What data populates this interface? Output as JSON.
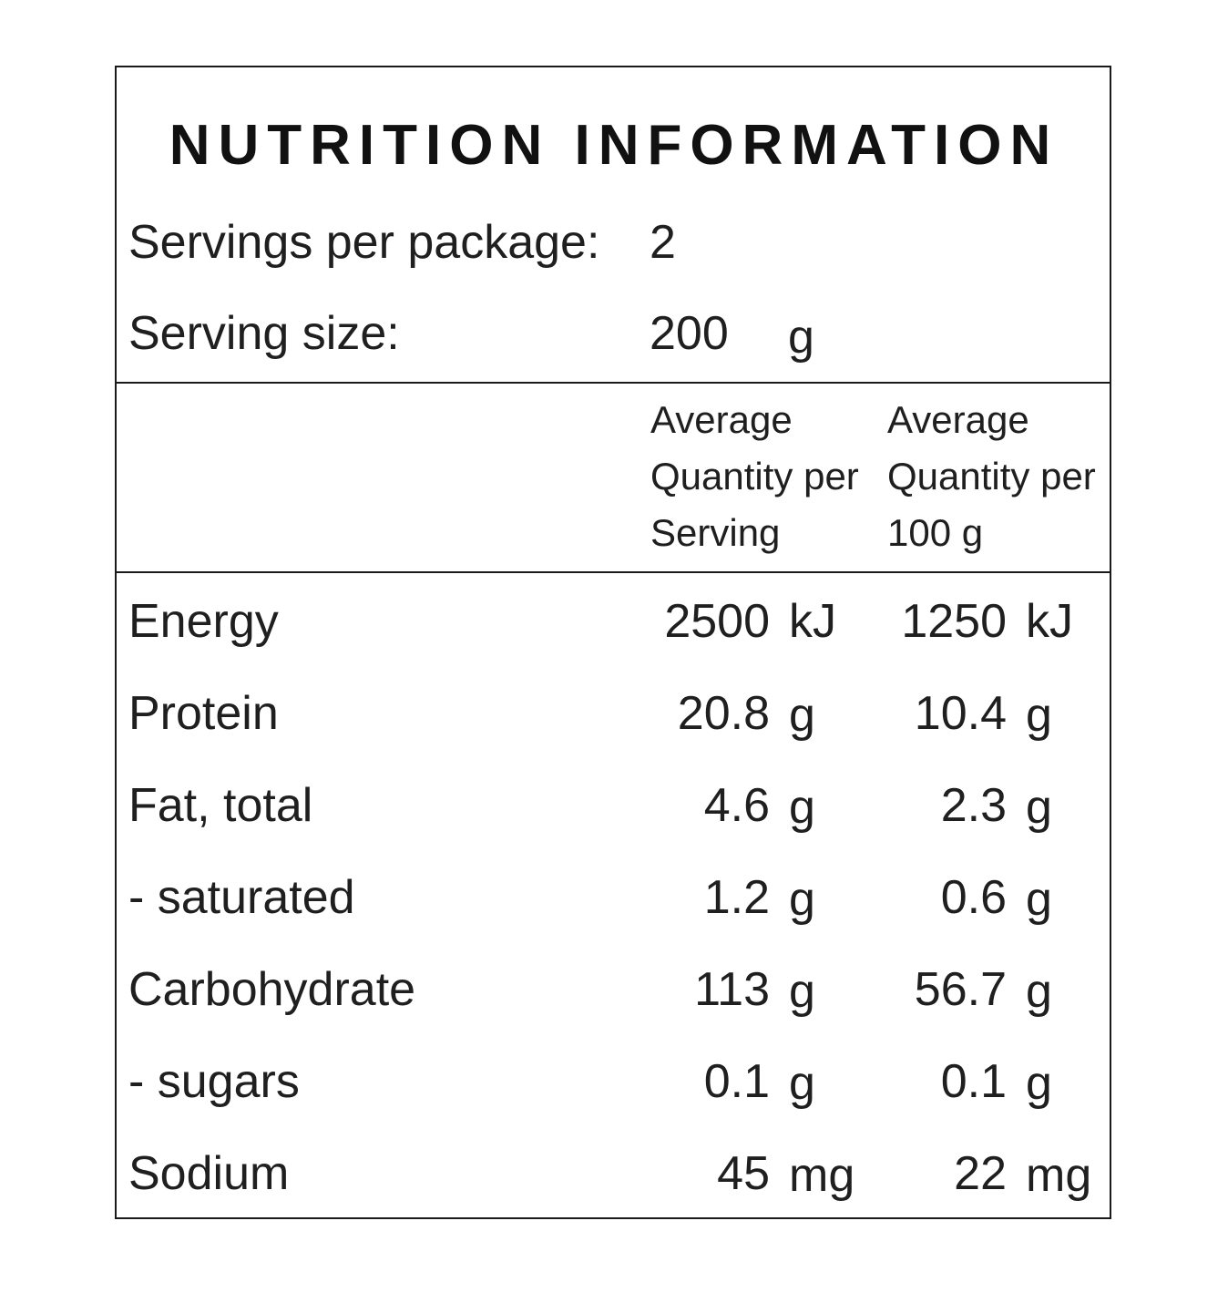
{
  "title": "NUTRITION INFORMATION",
  "servings_per_package": {
    "label": "Servings per package:",
    "value": "2"
  },
  "serving_size": {
    "label": "Serving size:",
    "value": "200",
    "unit": "g"
  },
  "column_headers": {
    "per_serving": [
      "Average",
      "Quantity per",
      "Serving"
    ],
    "per_100g": [
      "Average",
      "Quantity per",
      "100 g"
    ]
  },
  "rows": [
    {
      "name": "Energy",
      "serving_value": "2500",
      "serving_unit": "kJ",
      "per100_value": "1250",
      "per100_unit": "kJ"
    },
    {
      "name": "Protein",
      "serving_value": "20.8",
      "serving_unit": "g",
      "per100_value": "10.4",
      "per100_unit": "g"
    },
    {
      "name": "Fat, total",
      "serving_value": "4.6",
      "serving_unit": "g",
      "per100_value": "2.3",
      "per100_unit": "g"
    },
    {
      "name": "- saturated",
      "serving_value": "1.2",
      "serving_unit": "g",
      "per100_value": "0.6",
      "per100_unit": "g"
    },
    {
      "name": "Carbohydrate",
      "serving_value": "113",
      "serving_unit": "g",
      "per100_value": "56.7",
      "per100_unit": "g"
    },
    {
      "name": "- sugars",
      "serving_value": "0.1",
      "serving_unit": "g",
      "per100_value": "0.1",
      "per100_unit": "g"
    },
    {
      "name": "Sodium",
      "serving_value": "45",
      "serving_unit": "mg",
      "per100_value": "22",
      "per100_unit": "mg"
    }
  ]
}
